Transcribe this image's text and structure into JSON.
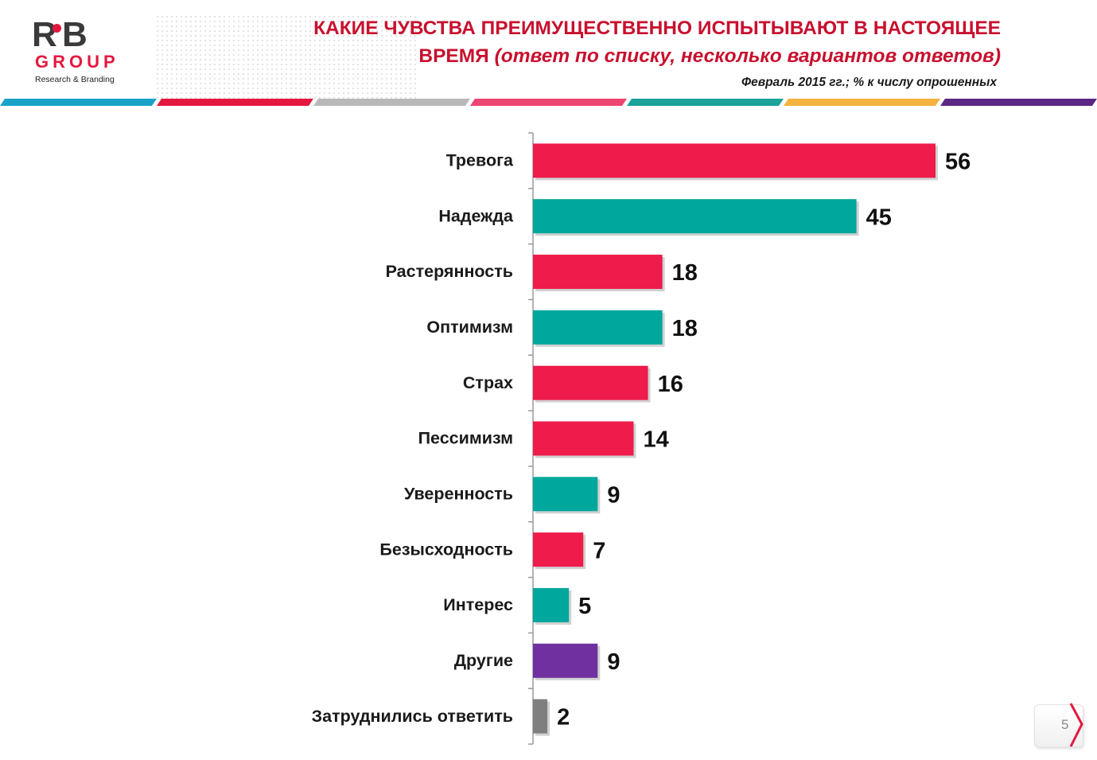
{
  "logo": {
    "mark": "R B",
    "group": "GROUP",
    "tagline": "Research & Branding"
  },
  "header": {
    "title_main": "КАКИЕ ЧУВСТВА ПРЕИМУЩЕСТВЕННО ИСПЫТЫВАЮТ В НАСТОЯЩЕЕ",
    "title_line2_bold": "ВРЕМЯ ",
    "title_line2_italic": "(ответ по списку, несколько вариантов ответов)",
    "subtitle": "Февраль 2015 гг.; % к числу опрошенных"
  },
  "colors": {
    "red": "#ee1b4b",
    "teal": "#00a79d",
    "purple": "#7030a0",
    "gray": "#7f7f7f",
    "title_red": "#c8102e",
    "stripes": [
      "#1aa3c8",
      "#e4183f",
      "#b9b9b9",
      "#ee4471",
      "#1aa39a",
      "#f4b33f",
      "#5c2784"
    ]
  },
  "chart_data": {
    "type": "bar",
    "orientation": "horizontal",
    "categories": [
      "Тревога",
      "Надежда",
      "Растерянность",
      "Оптимизм",
      "Страх",
      "Пессимизм",
      "Уверенность",
      "Безысходность",
      "Интерес",
      "Другие",
      "Затруднились ответить"
    ],
    "values": [
      56,
      45,
      18,
      18,
      16,
      14,
      9,
      7,
      5,
      9,
      2
    ],
    "bar_colors": [
      "#ee1b4b",
      "#00a79d",
      "#ee1b4b",
      "#00a79d",
      "#ee1b4b",
      "#ee1b4b",
      "#00a79d",
      "#ee1b4b",
      "#00a79d",
      "#7030a0",
      "#7f7f7f"
    ],
    "xlim": [
      0,
      60
    ],
    "grid": false,
    "data_labels": true
  },
  "page": {
    "number": "5"
  }
}
